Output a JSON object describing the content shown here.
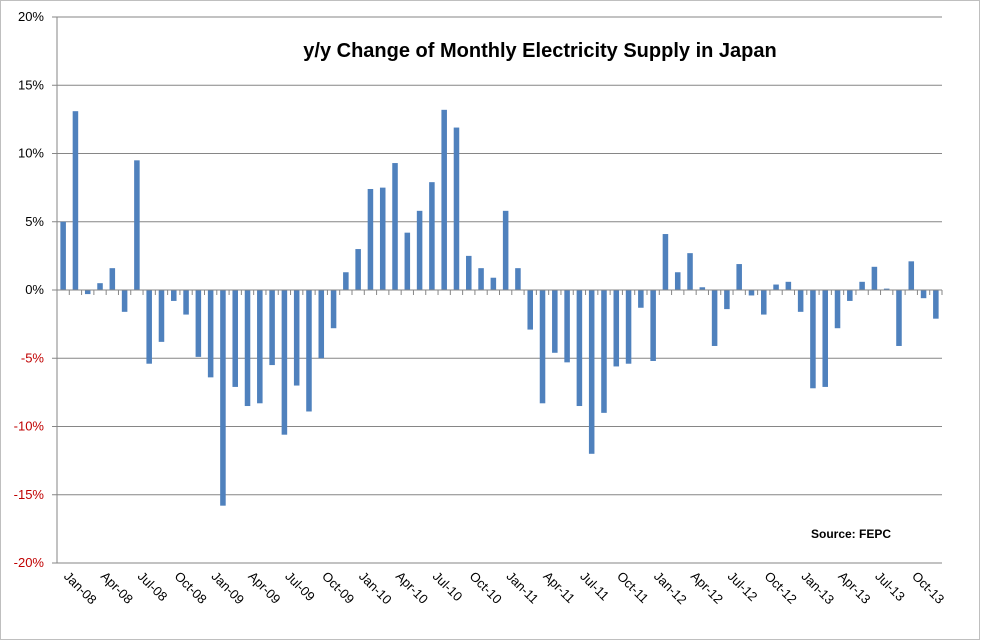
{
  "chart_data": {
    "type": "bar",
    "title": "y/y Change of Monthly Electricity Supply in Japan",
    "source_note": "Source: FEPC",
    "xlabel": "",
    "ylabel": "",
    "ylim": [
      -20,
      20
    ],
    "y_ticks": [
      "20%",
      "15%",
      "10%",
      "5%",
      "0%",
      "-5%",
      "-10%",
      "-15%",
      "-20%"
    ],
    "y_tick_values": [
      20,
      15,
      10,
      5,
      0,
      -5,
      -10,
      -15,
      -20
    ],
    "x_tick_labels": [
      "Jan-08",
      "Apr-08",
      "Jul-08",
      "Oct-08",
      "Jan-09",
      "Apr-09",
      "Jul-09",
      "Oct-09",
      "Jan-10",
      "Apr-10",
      "Jul-10",
      "Oct-10",
      "Jan-11",
      "Apr-11",
      "Jul-11",
      "Oct-11",
      "Jan-12",
      "Apr-12",
      "Jul-12",
      "Oct-12",
      "Jan-13",
      "Apr-13",
      "Jul-13",
      "Oct-13"
    ],
    "grid": true,
    "colors": {
      "bar": "#4f81bd",
      "positive_tick": "#000000",
      "negative_tick": "#c00000",
      "grid": "#868686",
      "axis": "#868686"
    },
    "categories": [
      "Jan-08",
      "Feb-08",
      "Mar-08",
      "Apr-08",
      "May-08",
      "Jun-08",
      "Jul-08",
      "Aug-08",
      "Sep-08",
      "Oct-08",
      "Nov-08",
      "Dec-08",
      "Jan-09",
      "Feb-09",
      "Mar-09",
      "Apr-09",
      "May-09",
      "Jun-09",
      "Jul-09",
      "Aug-09",
      "Sep-09",
      "Oct-09",
      "Nov-09",
      "Dec-09",
      "Jan-10",
      "Feb-10",
      "Mar-10",
      "Apr-10",
      "May-10",
      "Jun-10",
      "Jul-10",
      "Aug-10",
      "Sep-10",
      "Oct-10",
      "Nov-10",
      "Dec-10",
      "Jan-11",
      "Feb-11",
      "Mar-11",
      "Apr-11",
      "May-11",
      "Jun-11",
      "Jul-11",
      "Aug-11",
      "Sep-11",
      "Oct-11",
      "Nov-11",
      "Dec-11",
      "Jan-12",
      "Feb-12",
      "Mar-12",
      "Apr-12",
      "May-12",
      "Jun-12",
      "Jul-12",
      "Aug-12",
      "Sep-12",
      "Oct-12",
      "Nov-12",
      "Dec-12",
      "Jan-13",
      "Feb-13",
      "Mar-13",
      "Apr-13",
      "May-13",
      "Jun-13",
      "Jul-13",
      "Aug-13",
      "Sep-13",
      "Oct-13",
      "Nov-13",
      "Dec-13"
    ],
    "series": [
      {
        "name": "y/y change (%)",
        "values": [
          5.0,
          13.1,
          -0.3,
          0.5,
          1.6,
          -1.6,
          9.5,
          -5.4,
          -3.8,
          -0.8,
          -1.8,
          -4.9,
          -6.4,
          -15.8,
          -7.1,
          -8.5,
          -8.3,
          -5.5,
          -10.6,
          -7.0,
          -8.9,
          -5.0,
          -2.8,
          1.3,
          3.0,
          7.4,
          7.5,
          9.3,
          4.2,
          5.8,
          7.9,
          13.2,
          11.9,
          2.5,
          1.6,
          0.9,
          5.8,
          1.6,
          -2.9,
          -8.3,
          -4.6,
          -5.3,
          -8.5,
          -12.0,
          -9.0,
          -5.6,
          -5.4,
          -1.3,
          -5.2,
          4.1,
          1.3,
          2.7,
          0.2,
          -4.1,
          -1.4,
          1.9,
          -0.4,
          -1.8,
          0.4,
          0.6,
          -1.6,
          -7.2,
          -7.1,
          -2.8,
          -0.8,
          0.6,
          1.7,
          0.1,
          -4.1,
          2.1,
          -0.6,
          -2.1
        ]
      }
    ]
  }
}
